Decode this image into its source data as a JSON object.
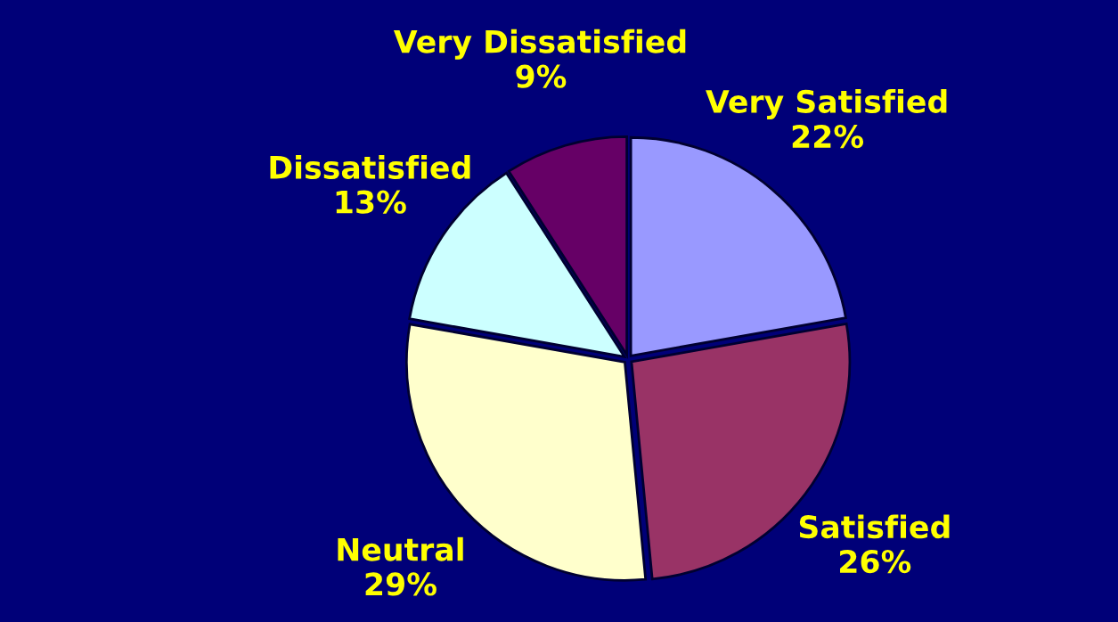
{
  "chart_data": {
    "type": "pie",
    "categories": [
      "Very Satisfied",
      "Satisfied",
      "Neutral",
      "Dissatisfied",
      "Very Dissatisfied"
    ],
    "values": [
      22,
      26,
      29,
      13,
      9
    ],
    "value_labels": [
      "22%",
      "26%",
      "29%",
      "13%",
      "9%"
    ],
    "colors": [
      "#9999ff",
      "#993366",
      "#ffffcc",
      "#ccffff",
      "#660066"
    ]
  }
}
